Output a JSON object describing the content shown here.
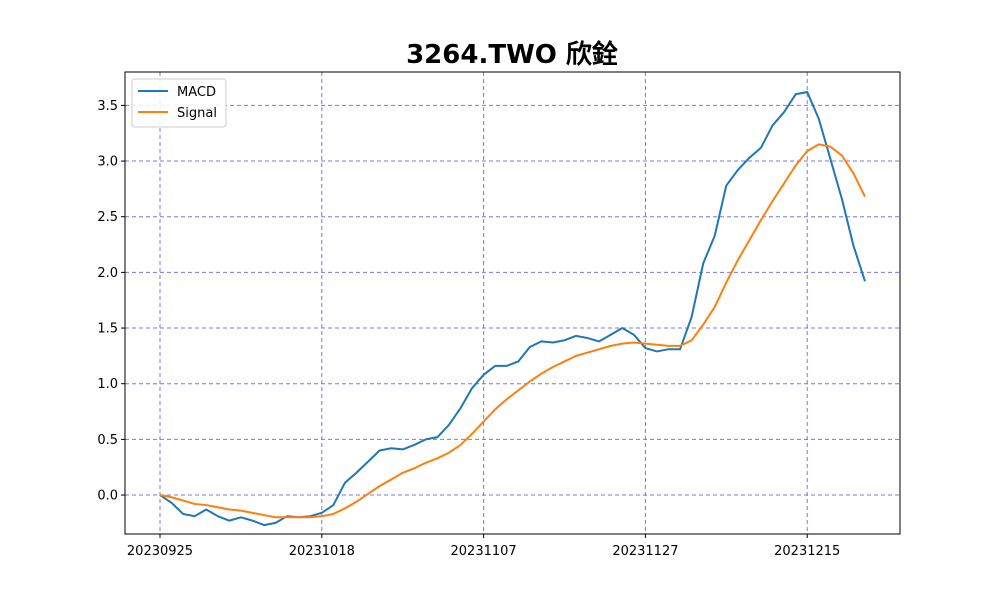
{
  "chart_data": {
    "type": "line",
    "title": "3264.TWO 欣銓",
    "xlabel": "",
    "ylabel": "",
    "ylim": [
      -0.35,
      3.8
    ],
    "yticks": [
      0.0,
      0.5,
      1.0,
      1.5,
      2.0,
      2.5,
      3.0,
      3.5
    ],
    "ytick_labels": [
      "0.0",
      "0.5",
      "1.0",
      "1.5",
      "2.0",
      "2.5",
      "3.0",
      "3.5"
    ],
    "xtick_labels": [
      "20230925",
      "20231018",
      "20231107",
      "20231127",
      "20231215"
    ],
    "xtick_indices": [
      0,
      14,
      28,
      42,
      56
    ],
    "grid": true,
    "legend_position": "upper-left",
    "colors": {
      "MACD": "#1f77b4",
      "Signal": "#ff7f0e",
      "grid": "#7777ee"
    },
    "series": [
      {
        "name": "MACD",
        "values": [
          0.0,
          -0.07,
          -0.17,
          -0.19,
          -0.13,
          -0.19,
          -0.23,
          -0.2,
          -0.23,
          -0.27,
          -0.25,
          -0.19,
          -0.2,
          -0.19,
          -0.16,
          -0.09,
          0.11,
          0.2,
          0.3,
          0.4,
          0.42,
          0.41,
          0.45,
          0.5,
          0.52,
          0.63,
          0.78,
          0.96,
          1.08,
          1.16,
          1.16,
          1.2,
          1.33,
          1.38,
          1.37,
          1.39,
          1.43,
          1.41,
          1.38,
          1.44,
          1.5,
          1.44,
          1.32,
          1.29,
          1.31,
          1.31,
          1.6,
          2.08,
          2.33,
          2.78,
          2.92,
          3.03,
          3.12,
          3.32,
          3.44,
          3.6,
          3.62,
          3.38,
          3.02,
          2.66,
          2.24,
          1.92
        ]
      },
      {
        "name": "Signal",
        "values": [
          0.0,
          -0.02,
          -0.05,
          -0.08,
          -0.09,
          -0.11,
          -0.13,
          -0.14,
          -0.16,
          -0.18,
          -0.2,
          -0.2,
          -0.2,
          -0.2,
          -0.19,
          -0.17,
          -0.12,
          -0.06,
          0.01,
          0.08,
          0.14,
          0.2,
          0.24,
          0.29,
          0.33,
          0.38,
          0.45,
          0.55,
          0.66,
          0.77,
          0.86,
          0.94,
          1.02,
          1.09,
          1.15,
          1.2,
          1.25,
          1.28,
          1.31,
          1.34,
          1.36,
          1.37,
          1.36,
          1.35,
          1.34,
          1.34,
          1.39,
          1.53,
          1.69,
          1.91,
          2.11,
          2.29,
          2.47,
          2.64,
          2.8,
          2.96,
          3.09,
          3.15,
          3.13,
          3.05,
          2.89,
          2.68
        ]
      }
    ]
  }
}
